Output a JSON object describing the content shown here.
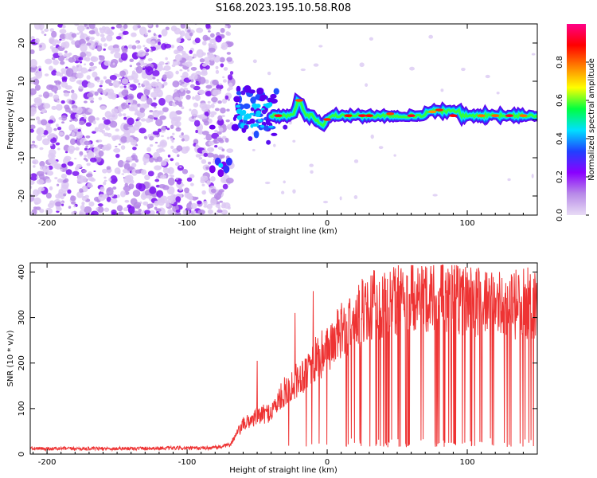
{
  "title": "S168.2023.195.10.58.R08",
  "chart_data": [
    {
      "type": "heatmap",
      "xlabel": "Height of straight line (km)",
      "ylabel": "Frequency (Hz)",
      "xlim": [
        -212,
        150
      ],
      "ylim": [
        -25,
        25
      ],
      "xticks": [
        -200,
        -100,
        0,
        100
      ],
      "yticks": [
        -20,
        -10,
        0,
        10,
        20
      ],
      "colorbar": {
        "label": "Normalized spectral amplitude",
        "range": [
          0.0,
          1.0
        ],
        "ticks": [
          0.0,
          0.2,
          0.4,
          0.6,
          0.8
        ],
        "colors": [
          "#e8dcf5",
          "#b88ae8",
          "#8a00ff",
          "#2040ff",
          "#00e0ff",
          "#00ff40",
          "#ffff00",
          "#ff8000",
          "#ff0000",
          "#ff0088"
        ]
      },
      "features": [
        {
          "x_range": [
            -212,
            -68
          ],
          "freq_range": [
            -25,
            25
          ],
          "amplitude": 0.05
        },
        {
          "x_range": [
            -82,
            -68
          ],
          "freq_center": -12,
          "amplitude": 0.3
        },
        {
          "x_range": [
            -68,
            150
          ],
          "freq_center": 1,
          "amplitude": 0.9
        }
      ]
    },
    {
      "type": "line",
      "xlabel": "Height of straight line (km)",
      "ylabel": "SNR (10 * v/v)",
      "xlim": [
        -212,
        150
      ],
      "ylim": [
        0,
        420
      ],
      "xticks": [
        -200,
        -100,
        0,
        100
      ],
      "yticks": [
        0,
        100,
        200,
        300,
        400
      ],
      "color": "#ee3333",
      "x": [
        -212,
        -180,
        -150,
        -120,
        -90,
        -80,
        -70,
        -60,
        -50,
        -40,
        -30,
        -20,
        -10,
        0,
        10,
        20,
        30,
        40,
        50,
        60,
        70,
        80,
        90,
        100,
        110,
        120,
        130,
        140,
        150
      ],
      "y": [
        12,
        12,
        12,
        13,
        13,
        14,
        20,
        70,
        90,
        100,
        150,
        180,
        220,
        250,
        290,
        320,
        350,
        360,
        370,
        370,
        370,
        375,
        375,
        370,
        360,
        355,
        350,
        355,
        360
      ],
      "dropout_floor": 15,
      "spikes": [
        {
          "x": -50,
          "y": 205
        },
        {
          "x": -10,
          "y": 358
        },
        {
          "x": -23,
          "y": 310
        }
      ]
    }
  ]
}
